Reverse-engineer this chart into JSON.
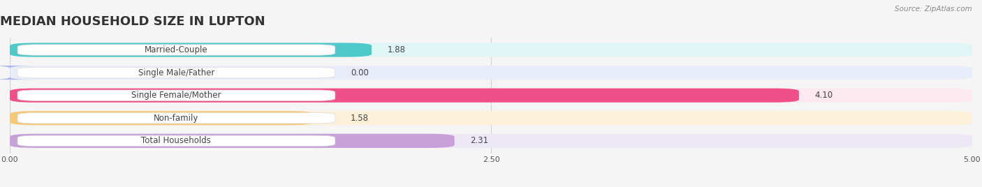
{
  "title": "MEDIAN HOUSEHOLD SIZE IN LUPTON",
  "source": "Source: ZipAtlas.com",
  "categories": [
    "Married-Couple",
    "Single Male/Father",
    "Single Female/Mother",
    "Non-family",
    "Total Households"
  ],
  "values": [
    1.88,
    0.0,
    4.1,
    1.58,
    2.31
  ],
  "bar_colors": [
    "#4ec8c8",
    "#aab8f0",
    "#f0508a",
    "#f5c87a",
    "#c8a0d8"
  ],
  "bg_colors": [
    "#e0f5f5",
    "#e8ecf8",
    "#fde8f0",
    "#fdf0d8",
    "#ede8f5"
  ],
  "label_bg": "#ffffff",
  "xlim": [
    0,
    5.0
  ],
  "xticks": [
    0.0,
    2.5,
    5.0
  ],
  "xtick_labels": [
    "0.00",
    "2.50",
    "5.00"
  ],
  "bar_height": 0.62,
  "bar_gap": 0.12,
  "figsize": [
    14.06,
    2.68
  ],
  "dpi": 100,
  "title_fontsize": 13,
  "label_fontsize": 8.5,
  "value_fontsize": 8.5,
  "tick_fontsize": 8,
  "background_color": "#f5f5f5",
  "grid_color": "#d0d0d0",
  "text_color": "#444444",
  "source_color": "#888888"
}
